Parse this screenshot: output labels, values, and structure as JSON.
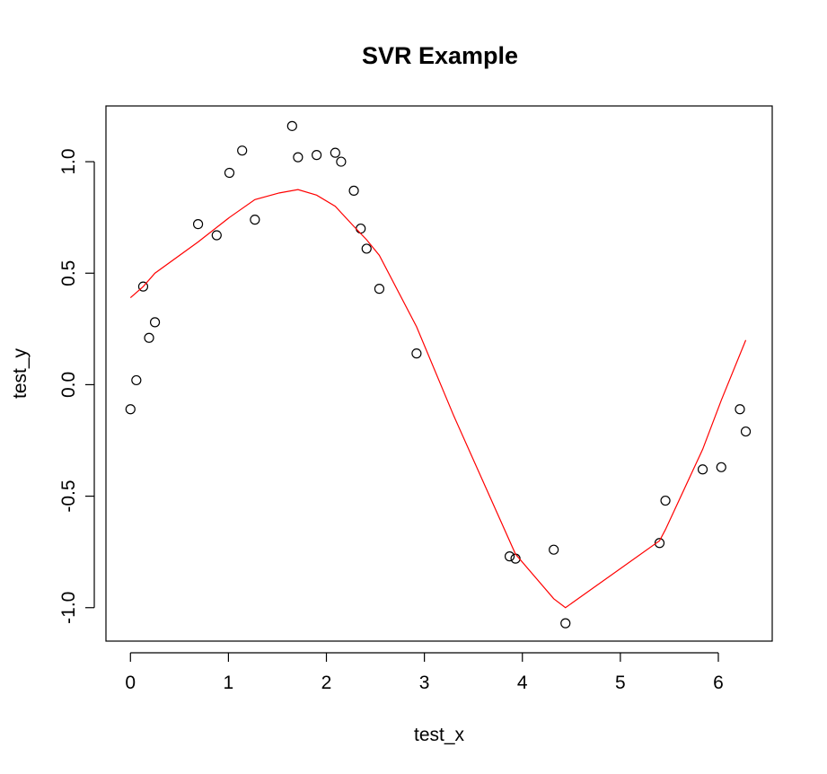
{
  "chart_data": {
    "type": "scatter",
    "title": "SVR Example",
    "xlabel": "test_x",
    "ylabel": "test_y",
    "xlim": [
      -0.25,
      6.55
    ],
    "ylim": [
      -1.15,
      1.25
    ],
    "x_ticks": [
      0,
      1,
      2,
      3,
      4,
      5,
      6
    ],
    "x_tick_labels": [
      "0",
      "1",
      "2",
      "3",
      "4",
      "5",
      "6"
    ],
    "y_ticks": [
      -1.0,
      -0.5,
      0.0,
      0.5,
      1.0
    ],
    "y_tick_labels": [
      "-1.0",
      "-0.5",
      "0.0",
      "0.5",
      "1.0"
    ],
    "grid": false,
    "series": [
      {
        "kind": "points",
        "marker": "open-circle",
        "color": "#000000",
        "x": [
          0.0,
          0.06,
          0.13,
          0.19,
          0.25,
          0.69,
          0.88,
          1.01,
          1.14,
          1.27,
          1.65,
          1.71,
          1.9,
          2.09,
          2.15,
          2.28,
          2.35,
          2.41,
          2.54,
          2.92,
          3.87,
          3.93,
          4.32,
          4.44,
          5.4,
          5.46,
          5.84,
          6.03,
          6.22,
          6.28
        ],
        "y": [
          -0.11,
          0.02,
          0.44,
          0.21,
          0.28,
          0.72,
          0.67,
          0.95,
          1.05,
          0.74,
          1.16,
          1.02,
          1.03,
          1.04,
          1.0,
          0.87,
          0.7,
          0.61,
          0.43,
          0.14,
          -0.77,
          -0.78,
          -0.74,
          -1.07,
          -0.71,
          -0.52,
          -0.38,
          -0.37,
          -0.11,
          -0.21
        ]
      },
      {
        "kind": "line",
        "color": "#ff0000",
        "x": [
          0.0,
          0.13,
          0.25,
          0.69,
          1.01,
          1.27,
          1.52,
          1.71,
          1.9,
          2.09,
          2.28,
          2.41,
          2.54,
          2.92,
          3.3,
          3.93,
          4.32,
          4.44,
          5.4,
          5.46,
          5.84,
          6.03,
          6.28
        ],
        "y": [
          0.39,
          0.44,
          0.5,
          0.64,
          0.75,
          0.83,
          0.86,
          0.875,
          0.85,
          0.8,
          0.71,
          0.65,
          0.58,
          0.26,
          -0.14,
          -0.76,
          -0.96,
          -1.0,
          -0.7,
          -0.65,
          -0.29,
          -0.07,
          0.2
        ]
      }
    ]
  }
}
